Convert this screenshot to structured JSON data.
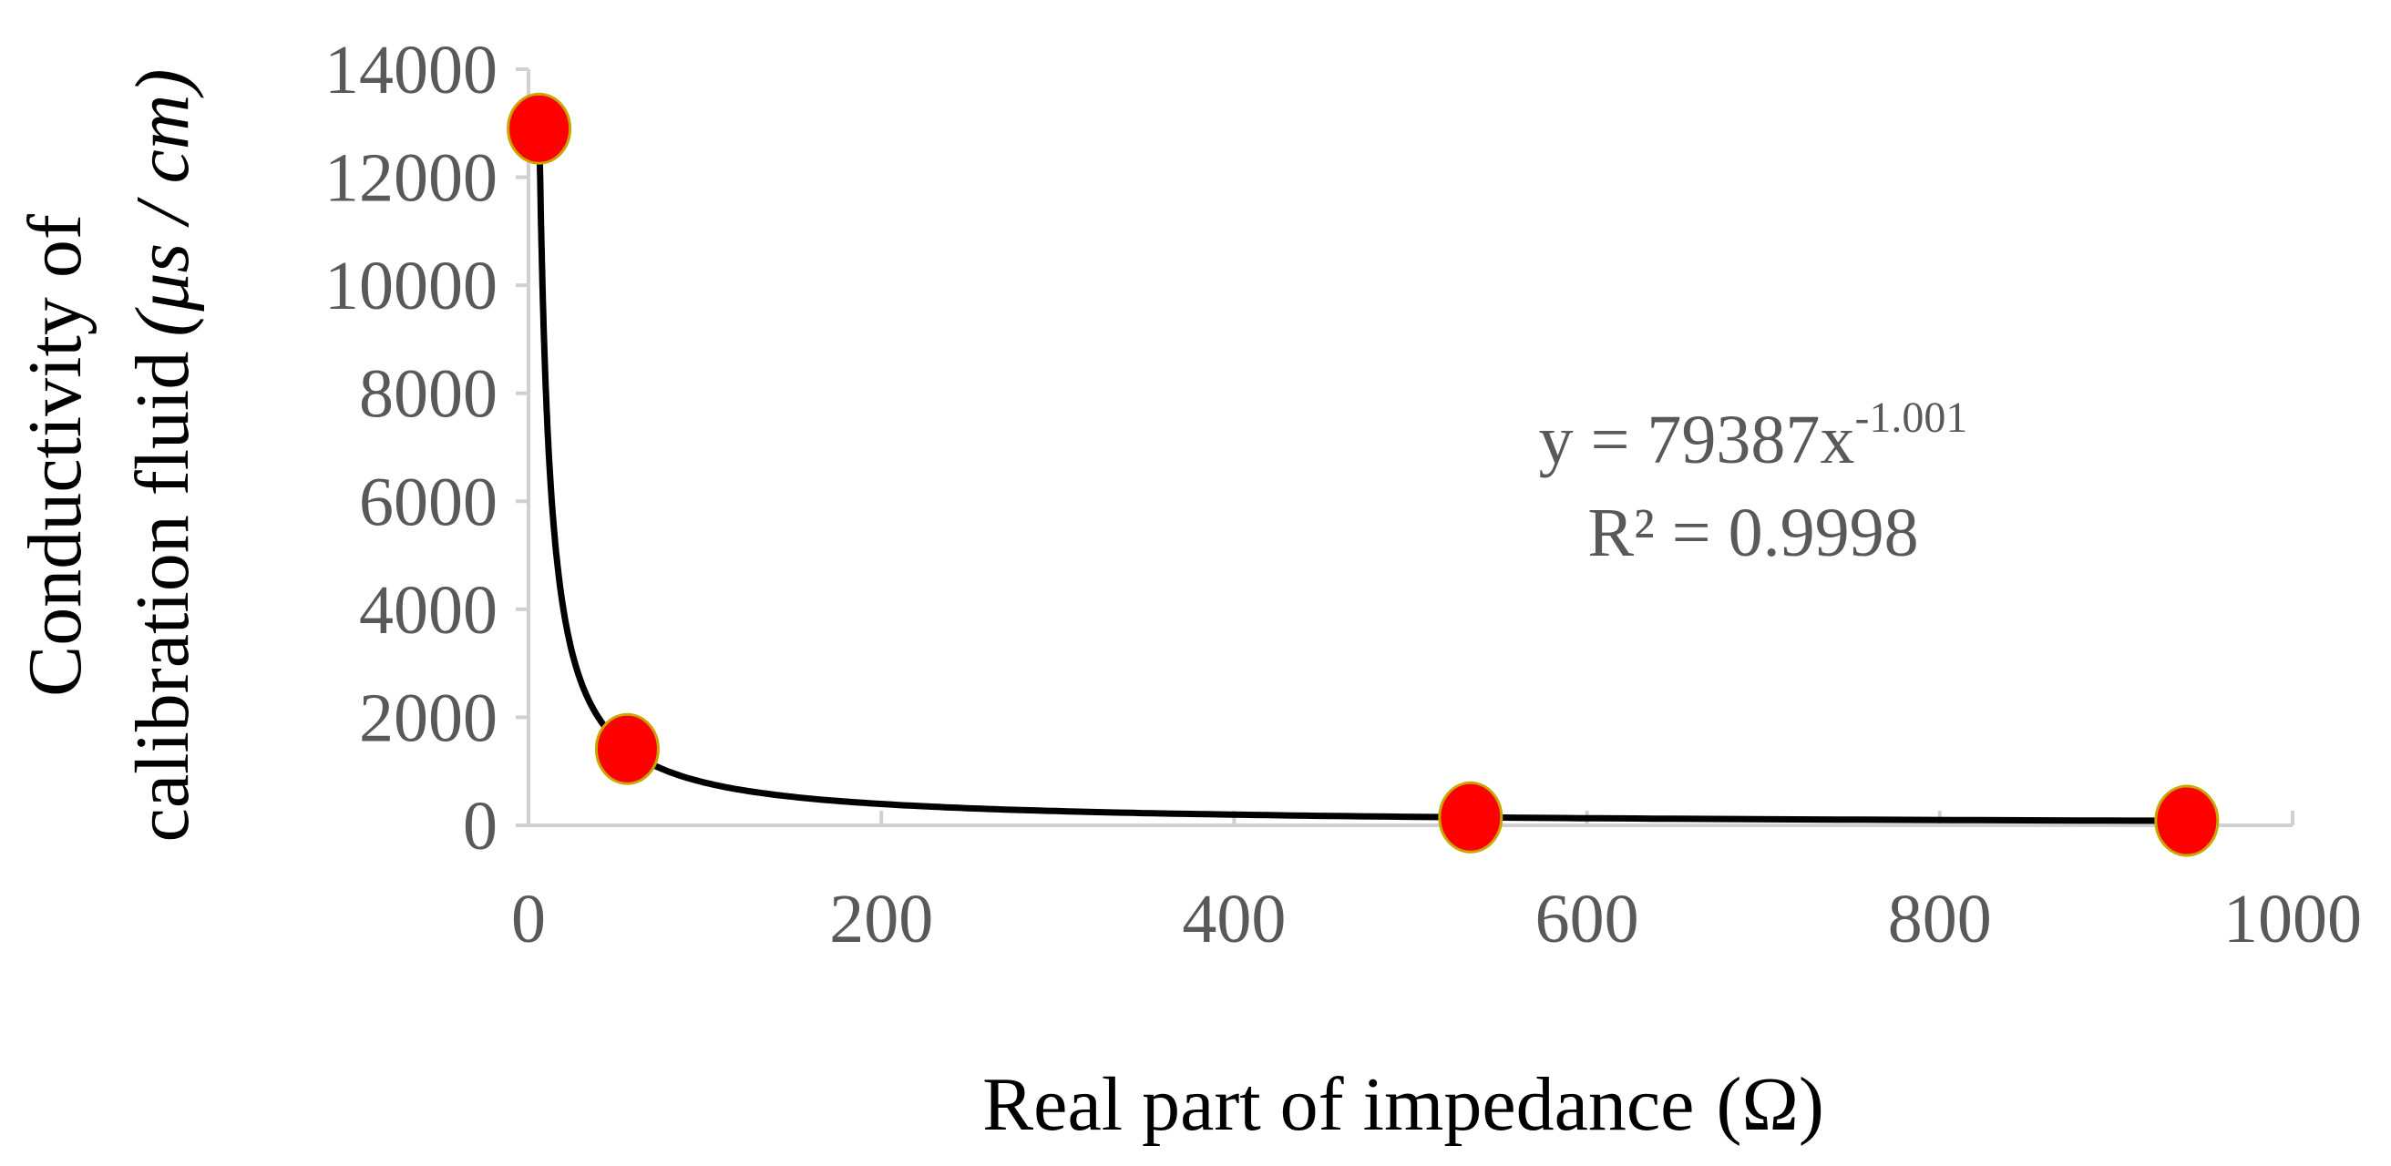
{
  "chart_data": {
    "type": "scatter",
    "title": "",
    "xlabel": "Real part of impedance",
    "xlabel_unit": "(Ω)",
    "ylabel_line1": "Conductivity of",
    "ylabel_line2": "calibration fluid",
    "ylabel_unit": "(μs / cm)",
    "xlim": [
      0,
      1000
    ],
    "ylim": [
      0,
      14000
    ],
    "x_ticks": [
      0,
      200,
      400,
      600,
      800,
      1000
    ],
    "y_ticks": [
      0,
      2000,
      4000,
      6000,
      8000,
      10000,
      12000,
      14000
    ],
    "x_tick_labels": [
      "0",
      "200",
      "400",
      "600",
      "800",
      "1000"
    ],
    "y_tick_labels": [
      "0",
      "2000",
      "4000",
      "6000",
      "8000",
      "10000",
      "12000",
      "14000"
    ],
    "grid": false,
    "series": [
      {
        "points": [
          {
            "x": 6,
            "y": 12900
          },
          {
            "x": 56,
            "y": 1413
          },
          {
            "x": 534,
            "y": 147
          },
          {
            "x": 940,
            "y": 84
          }
        ],
        "color": "#ff0000"
      }
    ],
    "trendline": {
      "type": "power",
      "coefficient": 79387,
      "exponent": -1.001,
      "x_range": [
        6,
        940
      ],
      "color": "#000000"
    },
    "annotation": {
      "equation_prefix": "y = 79387x",
      "equation_exponent": "-1.001",
      "r_squared": "R² = 0.9998"
    }
  }
}
